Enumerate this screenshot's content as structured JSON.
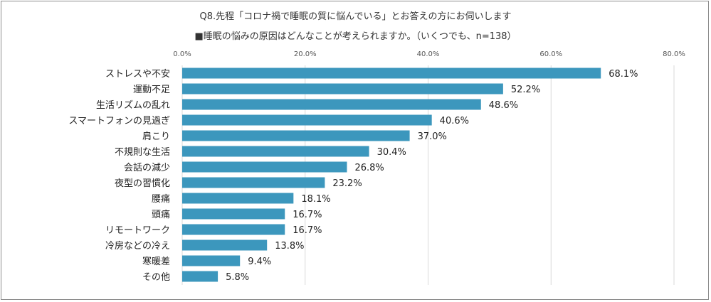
{
  "chart_data": {
    "type": "bar",
    "orientation": "horizontal",
    "title": "Q8.先程「コロナ禍で睡眠の質に悩んでいる」とお答えの方にお伺いします",
    "subtitle": "■睡眠の悩みの原因はどんなことが考えられますか。（いくつでも、n=138）",
    "categories": [
      "ストレスや不安",
      "運動不足",
      "生活リズムの乱れ",
      "スマートフォンの見過ぎ",
      "肩こり",
      "不規則な生活",
      "会話の減少",
      "夜型の習慣化",
      "腰痛",
      "頭痛",
      "リモートワーク",
      "冷房などの冷え",
      "寒暖差",
      "その他"
    ],
    "values": [
      68.1,
      52.2,
      48.6,
      40.6,
      37.0,
      30.4,
      26.8,
      23.2,
      18.1,
      16.7,
      16.7,
      13.8,
      9.4,
      5.8
    ],
    "value_labels": [
      "68.1%",
      "52.2%",
      "48.6%",
      "40.6%",
      "37.0%",
      "30.4%",
      "26.8%",
      "23.2%",
      "18.1%",
      "16.7%",
      "16.7%",
      "13.8%",
      "9.4%",
      "5.8%"
    ],
    "xlim": [
      0,
      80
    ],
    "xticks": [
      0,
      20,
      40,
      60,
      80
    ],
    "xtick_labels": [
      "0.0%",
      "20.0%",
      "40.0%",
      "60.0%",
      "80.0%"
    ],
    "x_axis_position": "top",
    "grid": true,
    "legend": "none",
    "bar_color": "#3c97bd",
    "grid_color": "#d9d9d9"
  }
}
